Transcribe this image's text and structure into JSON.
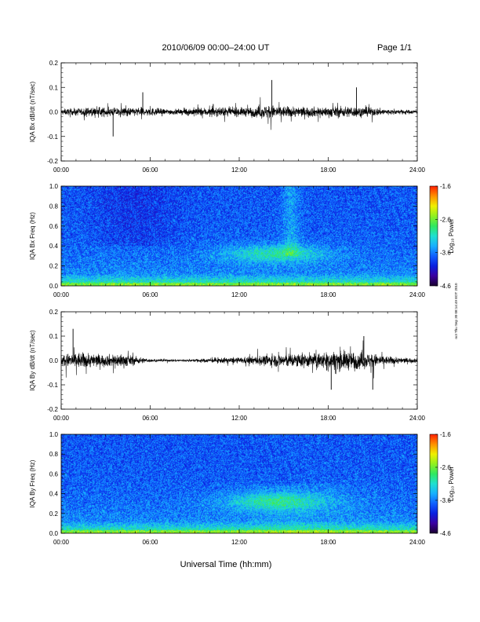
{
  "header": {
    "title": "2010/06/09  00:00–24:00 UT",
    "page": "Page 1/1"
  },
  "footer": {
    "xlabel": "Universal Time (hh:mm)"
  },
  "side_note": "not Thu Sep 30 08:14:49 EDT 2010",
  "colors": {
    "trace": "#000000",
    "colormap": [
      "#1a0030",
      "#3a00a0",
      "#0a20e0",
      "#1060ff",
      "#18b0ff",
      "#20e0d0",
      "#30e860",
      "#90f020",
      "#f0f000",
      "#ff9000",
      "#ff2000"
    ]
  },
  "chart_data": [
    {
      "type": "line",
      "ylabel": "IQA Bx dB/dt (nT/sec)",
      "xticks": [
        "00:00",
        "06:00",
        "12:00",
        "18:00",
        "24:00"
      ],
      "yticks": [
        "0.2",
        "0.1",
        "0.0",
        "-0.1",
        "-0.2"
      ],
      "xlim": [
        0,
        24
      ],
      "ylim": [
        -0.2,
        0.2
      ],
      "noise_envelope": {
        "x": [
          0,
          1,
          2,
          3,
          4,
          5,
          6,
          7,
          8,
          9,
          10,
          11,
          12,
          13,
          14,
          15,
          16,
          17,
          18,
          19,
          20,
          21,
          22,
          23,
          24
        ],
        "amplitude": [
          0.02,
          0.025,
          0.03,
          0.03,
          0.03,
          0.03,
          0.03,
          0.02,
          0.02,
          0.03,
          0.03,
          0.03,
          0.03,
          0.035,
          0.05,
          0.04,
          0.035,
          0.035,
          0.035,
          0.04,
          0.035,
          0.03,
          0.02,
          0.015,
          0.015
        ]
      },
      "spikes": [
        {
          "x": 14.2,
          "y": 0.13
        },
        {
          "x": 19.9,
          "y": 0.1
        },
        {
          "x": 5.5,
          "y": 0.08
        },
        {
          "x": 3.5,
          "y": -0.1
        }
      ]
    },
    {
      "type": "heatmap",
      "ylabel": "IQA Bx Freq (Hz)",
      "xticks": [
        "00:00",
        "06:00",
        "12:00",
        "18:00",
        "24:00"
      ],
      "yticks": [
        "1.0",
        "0.8",
        "0.6",
        "0.4",
        "0.2",
        "0.0"
      ],
      "xlim": [
        0,
        24
      ],
      "ylim": [
        0,
        1.0
      ],
      "colorbar": {
        "label": "Log₁₀ Power",
        "ticks": [
          "-1.6",
          "-2.6",
          "-3.6",
          "-4.6"
        ],
        "range": [
          -4.6,
          -1.6
        ]
      }
    },
    {
      "type": "line",
      "ylabel": "IQA By dB/dt (nT/sec)",
      "xticks": [
        "00:00",
        "06:00",
        "12:00",
        "18:00",
        "24:00"
      ],
      "yticks": [
        "0.2",
        "0.1",
        "0.0",
        "-0.1",
        "-0.2"
      ],
      "xlim": [
        0,
        24
      ],
      "ylim": [
        -0.2,
        0.2
      ],
      "noise_envelope": {
        "x": [
          0,
          1,
          2,
          3,
          4,
          5,
          6,
          7,
          8,
          9,
          10,
          11,
          12,
          13,
          14,
          15,
          16,
          17,
          18,
          19,
          20,
          21,
          22,
          23,
          24
        ],
        "amplitude": [
          0.04,
          0.06,
          0.05,
          0.04,
          0.05,
          0.03,
          0.01,
          0.008,
          0.008,
          0.01,
          0.015,
          0.02,
          0.02,
          0.03,
          0.04,
          0.05,
          0.05,
          0.05,
          0.06,
          0.07,
          0.06,
          0.05,
          0.03,
          0.02,
          0.015
        ]
      },
      "spikes": [
        {
          "x": 0.8,
          "y": 0.13
        },
        {
          "x": 18.2,
          "y": -0.12
        },
        {
          "x": 21.0,
          "y": -0.12
        },
        {
          "x": 20.4,
          "y": 0.1
        }
      ]
    },
    {
      "type": "heatmap",
      "ylabel": "IQA By Freq (Hz)",
      "xticks": [
        "00:00",
        "06:00",
        "12:00",
        "18:00",
        "24:00"
      ],
      "yticks": [
        "1.0",
        "0.8",
        "0.6",
        "0.4",
        "0.2",
        "0.0"
      ],
      "xlim": [
        0,
        24
      ],
      "ylim": [
        0,
        1.0
      ],
      "colorbar": {
        "label": "Log₁₀ Power",
        "ticks": [
          "-1.6",
          "-2.6",
          "-3.6",
          "-4.6"
        ],
        "range": [
          -4.6,
          -1.6
        ]
      }
    }
  ]
}
